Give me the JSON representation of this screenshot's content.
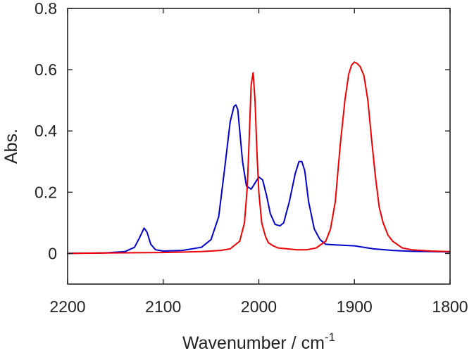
{
  "chart_data": {
    "type": "line",
    "title": "",
    "xlabel": "Wavenumber / cm",
    "xlabel_superscript": "-1",
    "ylabel": "Abs.",
    "xlim": [
      2200,
      1800
    ],
    "ylim": [
      -0.1,
      0.8
    ],
    "x_reversed": true,
    "xticks": [
      2200,
      2100,
      2000,
      1900,
      1800
    ],
    "xtick_labels": [
      "2200",
      "2100",
      "2000",
      "1900",
      "1800"
    ],
    "yticks": [
      0,
      0.2,
      0.4,
      0.6,
      0.8
    ],
    "ytick_labels": [
      "0",
      "0.2",
      "0.4",
      "0.6",
      "0.8"
    ],
    "grid": false,
    "series": [
      {
        "name": "blue spectrum",
        "color": "#0000cc",
        "x": [
          2200,
          2160,
          2140,
          2130,
          2125,
          2120,
          2117,
          2113,
          2108,
          2100,
          2080,
          2060,
          2050,
          2042,
          2036,
          2030,
          2026,
          2024,
          2022,
          2020,
          2017,
          2013,
          2008,
          2004,
          2000,
          1996,
          1992,
          1988,
          1983,
          1978,
          1974,
          1968,
          1962,
          1958,
          1955,
          1952,
          1948,
          1942,
          1936,
          1930,
          1920,
          1900,
          1880,
          1860,
          1840,
          1820,
          1800
        ],
        "values": [
          0.0,
          0.002,
          0.006,
          0.02,
          0.05,
          0.083,
          0.07,
          0.03,
          0.012,
          0.008,
          0.01,
          0.02,
          0.045,
          0.12,
          0.27,
          0.43,
          0.48,
          0.485,
          0.47,
          0.4,
          0.3,
          0.22,
          0.21,
          0.23,
          0.25,
          0.24,
          0.19,
          0.13,
          0.095,
          0.09,
          0.1,
          0.17,
          0.26,
          0.3,
          0.3,
          0.27,
          0.17,
          0.08,
          0.045,
          0.03,
          0.028,
          0.025,
          0.015,
          0.01,
          0.007,
          0.006,
          0.005
        ]
      },
      {
        "name": "red spectrum",
        "color": "#ee0000",
        "x": [
          2200,
          2150,
          2100,
          2060,
          2040,
          2030,
          2020,
          2015,
          2012,
          2010,
          2008,
          2006,
          2004,
          2002,
          2000,
          1997,
          1993,
          1990,
          1985,
          1980,
          1970,
          1960,
          1950,
          1940,
          1930,
          1925,
          1920,
          1915,
          1910,
          1906,
          1903,
          1900,
          1897,
          1894,
          1890,
          1886,
          1882,
          1878,
          1874,
          1870,
          1865,
          1860,
          1850,
          1840,
          1820,
          1800
        ],
        "values": [
          0.0,
          0.002,
          0.003,
          0.006,
          0.01,
          0.015,
          0.04,
          0.1,
          0.22,
          0.38,
          0.55,
          0.59,
          0.5,
          0.33,
          0.2,
          0.1,
          0.055,
          0.035,
          0.025,
          0.018,
          0.015,
          0.012,
          0.012,
          0.018,
          0.04,
          0.08,
          0.17,
          0.35,
          0.5,
          0.585,
          0.615,
          0.625,
          0.62,
          0.61,
          0.58,
          0.5,
          0.37,
          0.25,
          0.15,
          0.1,
          0.06,
          0.04,
          0.018,
          0.012,
          0.008,
          0.006
        ]
      }
    ]
  }
}
